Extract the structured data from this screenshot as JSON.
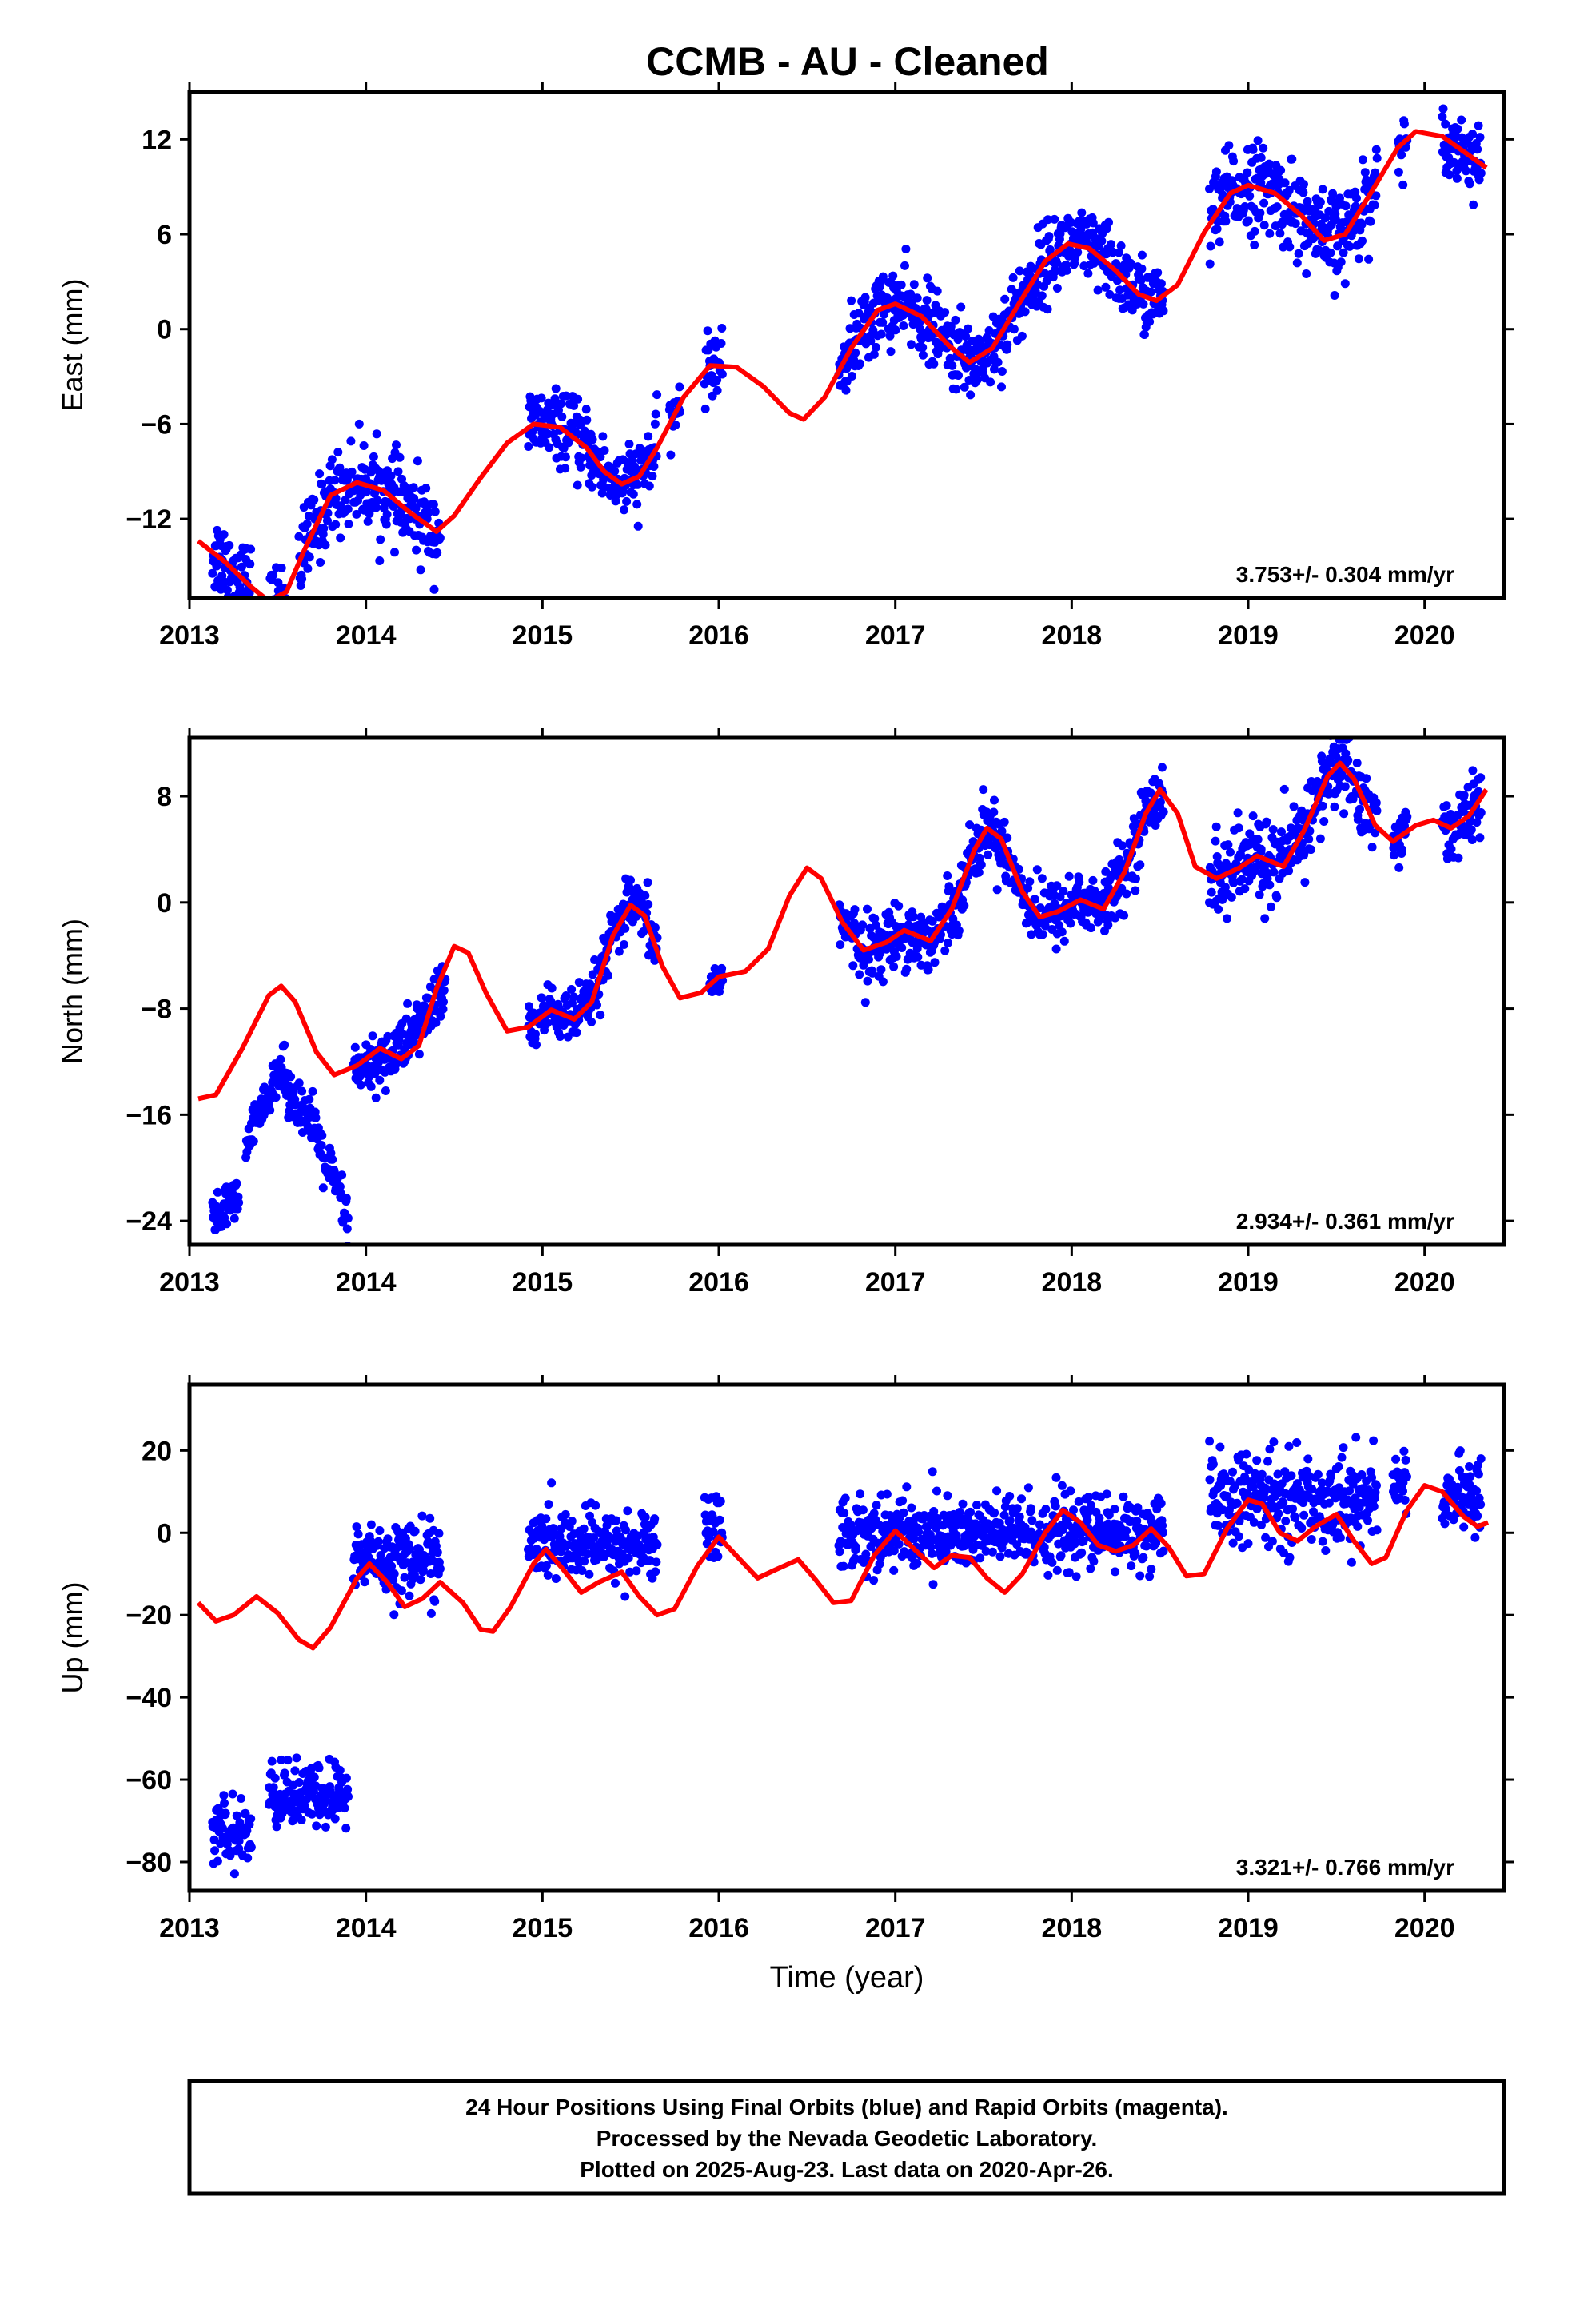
{
  "title": "CCMB  - AU - Cleaned",
  "colors": {
    "points": "#0000ff",
    "fit": "#ff0000",
    "frame": "#000000"
  },
  "footer": {
    "lines": [
      "24 Hour Positions Using Final Orbits (blue) and Rapid Orbits (magenta).",
      "Processed by the Nevada Geodetic Laboratory.",
      "Plotted on 2025-Aug-23. Last data on 2020-Apr-26."
    ]
  },
  "chart_data": [
    {
      "type": "scatter",
      "name": "east",
      "ylabel": "East (mm)",
      "xlabel": "",
      "xlim": [
        2013.0,
        2020.45
      ],
      "ylim": [
        -17.0,
        15.0
      ],
      "xticks": [
        2013,
        2014,
        2015,
        2016,
        2017,
        2018,
        2019,
        2020
      ],
      "yticks": [
        12,
        6,
        0,
        -6,
        -12
      ],
      "ytick_labels": [
        "12",
        "6",
        "0",
        "−6",
        "−12"
      ],
      "rate_label": "3.753+/- 0.304 mm/yr",
      "data_segments": [
        {
          "t0": 2013.13,
          "t1": 2013.35,
          "scatter": 1.3
        },
        {
          "t0": 2013.45,
          "t1": 2013.55,
          "scatter": 1.0
        },
        {
          "t0": 2013.62,
          "t1": 2014.42,
          "scatter": 1.3
        },
        {
          "t0": 2014.92,
          "t1": 2015.65,
          "scatter": 1.1
        },
        {
          "t0": 2015.72,
          "t1": 2015.78,
          "scatter": 0.8
        },
        {
          "t0": 2015.92,
          "t1": 2016.02,
          "scatter": 1.0
        },
        {
          "t0": 2016.68,
          "t1": 2018.52,
          "scatter": 1.2
        },
        {
          "t0": 2018.78,
          "t1": 2019.73,
          "scatter": 1.4
        },
        {
          "t0": 2019.85,
          "t1": 2019.9,
          "scatter": 0.8
        },
        {
          "t0": 2020.1,
          "t1": 2020.32,
          "scatter": 1.0
        }
      ],
      "fit": [
        [
          2013.05,
          -13.4
        ],
        [
          2013.2,
          -14.7
        ],
        [
          2013.35,
          -16.3
        ],
        [
          2013.45,
          -17.2
        ],
        [
          2013.55,
          -16.6
        ],
        [
          2013.65,
          -14.0
        ],
        [
          2013.8,
          -10.5
        ],
        [
          2013.95,
          -9.7
        ],
        [
          2014.1,
          -10.2
        ],
        [
          2014.25,
          -11.6
        ],
        [
          2014.4,
          -12.8
        ],
        [
          2014.5,
          -11.8
        ],
        [
          2014.65,
          -9.4
        ],
        [
          2014.8,
          -7.2
        ],
        [
          2014.95,
          -6.0
        ],
        [
          2015.1,
          -6.2
        ],
        [
          2015.25,
          -7.5
        ],
        [
          2015.35,
          -9.0
        ],
        [
          2015.45,
          -9.8
        ],
        [
          2015.55,
          -9.3
        ],
        [
          2015.65,
          -7.5
        ],
        [
          2015.8,
          -4.3
        ],
        [
          2015.95,
          -2.3
        ],
        [
          2016.1,
          -2.4
        ],
        [
          2016.25,
          -3.6
        ],
        [
          2016.4,
          -5.3
        ],
        [
          2016.48,
          -5.7
        ],
        [
          2016.6,
          -4.3
        ],
        [
          2016.75,
          -1.2
        ],
        [
          2016.9,
          1.2
        ],
        [
          2017.0,
          1.6
        ],
        [
          2017.15,
          0.8
        ],
        [
          2017.3,
          -1.0
        ],
        [
          2017.42,
          -2.1
        ],
        [
          2017.55,
          -1.2
        ],
        [
          2017.7,
          1.6
        ],
        [
          2017.85,
          4.3
        ],
        [
          2017.98,
          5.4
        ],
        [
          2018.1,
          5.1
        ],
        [
          2018.25,
          3.7
        ],
        [
          2018.38,
          2.2
        ],
        [
          2018.48,
          1.8
        ],
        [
          2018.6,
          2.8
        ],
        [
          2018.75,
          6.1
        ],
        [
          2018.9,
          8.6
        ],
        [
          2019.0,
          9.1
        ],
        [
          2019.15,
          8.6
        ],
        [
          2019.3,
          7.2
        ],
        [
          2019.43,
          5.6
        ],
        [
          2019.55,
          6.0
        ],
        [
          2019.7,
          8.7
        ],
        [
          2019.85,
          11.5
        ],
        [
          2019.95,
          12.5
        ],
        [
          2020.1,
          12.2
        ],
        [
          2020.25,
          11.0
        ],
        [
          2020.35,
          10.2
        ]
      ]
    },
    {
      "type": "scatter",
      "name": "north",
      "ylabel": "North (mm)",
      "xlabel": "",
      "xlim": [
        2013.0,
        2020.45
      ],
      "ylim": [
        -25.8,
        12.4
      ],
      "xticks": [
        2013,
        2014,
        2015,
        2016,
        2017,
        2018,
        2019,
        2020
      ],
      "yticks": [
        8,
        0,
        -8,
        -16,
        -24
      ],
      "ytick_labels": [
        "8",
        "0",
        "−8",
        "−16",
        "−24"
      ],
      "rate_label": "2.934+/- 0.361 mm/yr",
      "data_segments": [
        {
          "t0": 2013.13,
          "t1": 2013.28,
          "track": [
            [
              2013.13,
              -23.8
            ],
            [
              2013.28,
              -22.5
            ]
          ],
          "scatter": 0.9
        },
        {
          "t0": 2013.32,
          "t1": 2013.5,
          "track": [
            [
              2013.32,
              -18.5
            ],
            [
              2013.5,
              -12.5
            ]
          ],
          "scatter": 0.8
        },
        {
          "t0": 2013.5,
          "t1": 2013.9,
          "track": [
            [
              2013.5,
              -12.5
            ],
            [
              2013.7,
              -17.0
            ],
            [
              2013.9,
              -24.0
            ]
          ],
          "scatter": 1.0
        },
        {
          "t0": 2013.93,
          "t1": 2014.45,
          "track": [
            [
              2013.93,
              -13.0
            ],
            [
              2014.2,
              -11.0
            ],
            [
              2014.45,
              -6.5
            ]
          ],
          "scatter": 1.1
        },
        {
          "t0": 2014.92,
          "t1": 2015.65,
          "scatter": 1.0
        },
        {
          "t0": 2015.95,
          "t1": 2016.02,
          "scatter": 0.8
        },
        {
          "t0": 2016.68,
          "t1": 2018.52,
          "scatter": 1.2
        },
        {
          "t0": 2018.78,
          "t1": 2019.73,
          "scatter": 1.6
        },
        {
          "t0": 2019.82,
          "t1": 2019.9,
          "scatter": 1.0
        },
        {
          "t0": 2020.1,
          "t1": 2020.32,
          "scatter": 1.2
        }
      ],
      "fit": [
        [
          2013.05,
          -14.8
        ],
        [
          2013.15,
          -14.5
        ],
        [
          2013.3,
          -11.0
        ],
        [
          2013.45,
          -7.0
        ],
        [
          2013.52,
          -6.3
        ],
        [
          2013.6,
          -7.5
        ],
        [
          2013.72,
          -11.3
        ],
        [
          2013.82,
          -13.0
        ],
        [
          2013.95,
          -12.3
        ],
        [
          2014.08,
          -11.0
        ],
        [
          2014.2,
          -11.8
        ],
        [
          2014.3,
          -10.8
        ],
        [
          2014.4,
          -6.5
        ],
        [
          2014.5,
          -3.3
        ],
        [
          2014.58,
          -3.8
        ],
        [
          2014.68,
          -6.8
        ],
        [
          2014.8,
          -9.7
        ],
        [
          2014.92,
          -9.4
        ],
        [
          2015.05,
          -8.1
        ],
        [
          2015.18,
          -8.8
        ],
        [
          2015.28,
          -7.5
        ],
        [
          2015.4,
          -2.5
        ],
        [
          2015.5,
          -0.2
        ],
        [
          2015.58,
          -1.0
        ],
        [
          2015.68,
          -4.8
        ],
        [
          2015.78,
          -7.2
        ],
        [
          2015.9,
          -6.8
        ],
        [
          2016.0,
          -5.6
        ],
        [
          2016.15,
          -5.2
        ],
        [
          2016.28,
          -3.5
        ],
        [
          2016.4,
          0.5
        ],
        [
          2016.5,
          2.6
        ],
        [
          2016.58,
          1.8
        ],
        [
          2016.7,
          -1.5
        ],
        [
          2016.82,
          -3.6
        ],
        [
          2016.95,
          -3.0
        ],
        [
          2017.05,
          -2.1
        ],
        [
          2017.2,
          -2.9
        ],
        [
          2017.32,
          -0.5
        ],
        [
          2017.45,
          4.0
        ],
        [
          2017.52,
          5.6
        ],
        [
          2017.6,
          4.8
        ],
        [
          2017.72,
          0.8
        ],
        [
          2017.82,
          -1.1
        ],
        [
          2017.92,
          -0.7
        ],
        [
          2018.05,
          0.2
        ],
        [
          2018.18,
          -0.5
        ],
        [
          2018.3,
          2.3
        ],
        [
          2018.42,
          6.7
        ],
        [
          2018.5,
          8.5
        ],
        [
          2018.6,
          6.7
        ],
        [
          2018.7,
          2.7
        ],
        [
          2018.82,
          1.8
        ],
        [
          2018.95,
          2.6
        ],
        [
          2019.05,
          3.5
        ],
        [
          2019.2,
          2.7
        ],
        [
          2019.32,
          5.5
        ],
        [
          2019.45,
          9.5
        ],
        [
          2019.52,
          10.5
        ],
        [
          2019.6,
          9.3
        ],
        [
          2019.72,
          5.8
        ],
        [
          2019.82,
          4.6
        ],
        [
          2019.95,
          5.8
        ],
        [
          2020.05,
          6.2
        ],
        [
          2020.15,
          5.6
        ],
        [
          2020.25,
          6.5
        ],
        [
          2020.35,
          8.5
        ]
      ]
    },
    {
      "type": "scatter",
      "name": "up",
      "ylabel": "Up (mm)",
      "xlabel": "Time (year)",
      "xlim": [
        2013.0,
        2020.45
      ],
      "ylim": [
        -87.0,
        36.0
      ],
      "xticks": [
        2013,
        2014,
        2015,
        2016,
        2017,
        2018,
        2019,
        2020
      ],
      "yticks": [
        20,
        0,
        -20,
        -40,
        -60,
        -80
      ],
      "ytick_labels": [
        "20",
        "0",
        "−20",
        "−40",
        "−60",
        "−80"
      ],
      "rate_label": "3.321+/- 0.766 mm/yr",
      "data_segments": [
        {
          "t0": 2013.13,
          "t1": 2013.35,
          "center": -73,
          "scatter": 4.0
        },
        {
          "t0": 2013.45,
          "t1": 2013.9,
          "center": -64,
          "scatter": 4.0
        },
        {
          "t0": 2013.93,
          "t1": 2014.42,
          "center": -6,
          "scatter": 4.5
        },
        {
          "t0": 2014.92,
          "t1": 2015.65,
          "center": -3,
          "scatter": 4.0
        },
        {
          "t0": 2015.92,
          "t1": 2016.02,
          "center": 2,
          "scatter": 5.0
        },
        {
          "t0": 2016.68,
          "t1": 2018.52,
          "center": 0,
          "scatter": 4.5
        },
        {
          "t0": 2018.78,
          "t1": 2019.73,
          "center": 8,
          "scatter": 5.5
        },
        {
          "t0": 2019.82,
          "t1": 2019.9,
          "center": 12,
          "scatter": 3.0
        },
        {
          "t0": 2020.1,
          "t1": 2020.32,
          "center": 9,
          "scatter": 4.0
        }
      ],
      "fit": [
        [
          2013.05,
          -17.0
        ],
        [
          2013.15,
          -21.5
        ],
        [
          2013.25,
          -20.0
        ],
        [
          2013.38,
          -15.5
        ],
        [
          2013.5,
          -19.5
        ],
        [
          2013.62,
          -26.0
        ],
        [
          2013.7,
          -28.0
        ],
        [
          2013.8,
          -23.0
        ],
        [
          2013.95,
          -11.0
        ],
        [
          2014.02,
          -7.5
        ],
        [
          2014.12,
          -12.0
        ],
        [
          2014.22,
          -18.0
        ],
        [
          2014.32,
          -16.0
        ],
        [
          2014.42,
          -12.0
        ],
        [
          2014.55,
          -17.0
        ],
        [
          2014.65,
          -23.5
        ],
        [
          2014.72,
          -24.0
        ],
        [
          2014.82,
          -18.0
        ],
        [
          2014.95,
          -7.5
        ],
        [
          2015.02,
          -4.0
        ],
        [
          2015.12,
          -9.0
        ],
        [
          2015.22,
          -14.5
        ],
        [
          2015.32,
          -12.0
        ],
        [
          2015.45,
          -9.5
        ],
        [
          2015.55,
          -15.5
        ],
        [
          2015.65,
          -20.0
        ],
        [
          2015.75,
          -18.5
        ],
        [
          2015.88,
          -8.0
        ],
        [
          2016.0,
          -1.0
        ],
        [
          2016.12,
          -6.5
        ],
        [
          2016.22,
          -11.0
        ],
        [
          2016.32,
          -9.0
        ],
        [
          2016.45,
          -6.5
        ],
        [
          2016.55,
          -11.5
        ],
        [
          2016.65,
          -17.0
        ],
        [
          2016.75,
          -16.5
        ],
        [
          2016.88,
          -5.5
        ],
        [
          2017.0,
          0.5
        ],
        [
          2017.12,
          -4.5
        ],
        [
          2017.22,
          -8.5
        ],
        [
          2017.32,
          -5.5
        ],
        [
          2017.42,
          -6.0
        ],
        [
          2017.52,
          -11.0
        ],
        [
          2017.62,
          -14.5
        ],
        [
          2017.72,
          -10.0
        ],
        [
          2017.85,
          0.0
        ],
        [
          2017.95,
          5.5
        ],
        [
          2018.05,
          2.5
        ],
        [
          2018.15,
          -3.0
        ],
        [
          2018.25,
          -4.5
        ],
        [
          2018.35,
          -3.0
        ],
        [
          2018.45,
          1.0
        ],
        [
          2018.55,
          -3.5
        ],
        [
          2018.65,
          -10.5
        ],
        [
          2018.75,
          -10.0
        ],
        [
          2018.88,
          1.0
        ],
        [
          2019.0,
          8.0
        ],
        [
          2019.08,
          7.0
        ],
        [
          2019.18,
          0.0
        ],
        [
          2019.28,
          -2.0
        ],
        [
          2019.38,
          1.5
        ],
        [
          2019.5,
          4.5
        ],
        [
          2019.6,
          -2.0
        ],
        [
          2019.7,
          -7.5
        ],
        [
          2019.78,
          -6.0
        ],
        [
          2019.9,
          5.5
        ],
        [
          2020.0,
          11.5
        ],
        [
          2020.1,
          10.0
        ],
        [
          2020.22,
          4.0
        ],
        [
          2020.3,
          1.5
        ],
        [
          2020.36,
          2.5
        ]
      ]
    }
  ]
}
